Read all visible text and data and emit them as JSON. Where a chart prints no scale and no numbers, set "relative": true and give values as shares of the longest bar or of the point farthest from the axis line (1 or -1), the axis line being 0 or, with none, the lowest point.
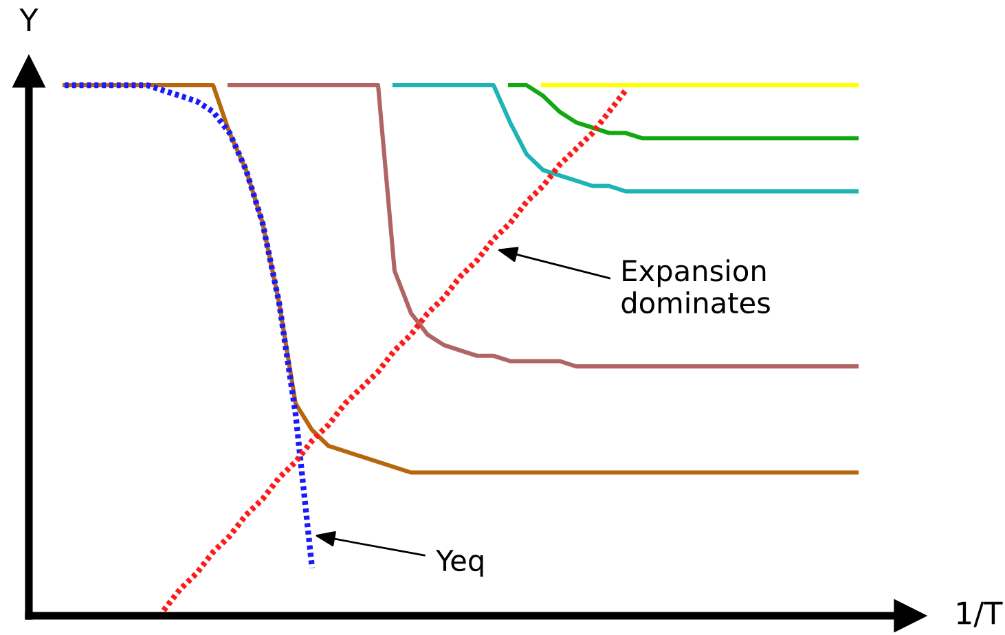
{
  "chart_data": {
    "type": "line",
    "relative": true,
    "xlabel": "1/T",
    "ylabel": "Y",
    "categories": [
      null,
      null,
      null,
      null,
      null,
      null,
      null,
      null,
      null,
      null,
      null,
      null,
      null,
      null,
      null,
      null,
      null,
      null,
      null,
      null,
      null,
      null,
      null,
      null,
      null,
      null,
      null,
      null,
      null,
      null,
      null,
      null,
      null,
      null,
      null,
      null,
      null,
      null,
      null,
      null,
      null,
      null,
      null,
      null,
      null,
      null,
      null,
      null,
      null
    ],
    "annotations": [
      "Expansion dominates",
      "Yeq"
    ],
    "series": [
      {
        "color": "#b8660b",
        "line_style": "solid",
        "values": [
          1.0,
          1.0,
          1.0,
          1.0,
          1.0,
          1.0,
          1.0,
          1.0,
          1.0,
          1.0,
          0.91,
          0.84,
          0.74,
          0.59,
          0.4,
          0.35,
          0.32,
          0.31,
          0.3,
          0.29,
          0.28,
          0.27,
          0.27,
          0.27,
          0.27,
          0.27,
          0.27,
          0.27,
          0.27,
          0.27,
          0.27,
          0.27,
          0.27,
          0.27,
          0.27,
          0.27,
          0.27,
          0.27,
          0.27,
          0.27,
          0.27,
          0.27,
          0.27,
          0.27,
          0.27,
          0.27,
          0.27,
          0.27,
          0.27
        ]
      },
      {
        "color": "#b06464",
        "line_style": "solid",
        "values": [
          null,
          null,
          null,
          null,
          null,
          null,
          null,
          null,
          null,
          null,
          1.0,
          1.0,
          1.0,
          1.0,
          1.0,
          1.0,
          1.0,
          1.0,
          1.0,
          1.0,
          0.65,
          0.57,
          0.53,
          0.51,
          0.5,
          0.49,
          0.49,
          0.48,
          0.48,
          0.48,
          0.48,
          0.47,
          0.47,
          0.47,
          0.47,
          0.47,
          0.47,
          0.47,
          0.47,
          0.47,
          0.47,
          0.47,
          0.47,
          0.47,
          0.47,
          0.47,
          0.47,
          0.47,
          0.47
        ]
      },
      {
        "color": "#1fb4b4",
        "line_style": "solid",
        "values": [
          null,
          null,
          null,
          null,
          null,
          null,
          null,
          null,
          null,
          null,
          null,
          null,
          null,
          null,
          null,
          null,
          null,
          null,
          null,
          null,
          1.0,
          1.0,
          1.0,
          1.0,
          1.0,
          1.0,
          1.0,
          0.93,
          0.87,
          0.84,
          0.83,
          0.82,
          0.81,
          0.81,
          0.8,
          0.8,
          0.8,
          0.8,
          0.8,
          0.8,
          0.8,
          0.8,
          0.8,
          0.8,
          0.8,
          0.8,
          0.8,
          0.8,
          0.8
        ]
      },
      {
        "color": "#12a812",
        "line_style": "solid",
        "values": [
          null,
          null,
          null,
          null,
          null,
          null,
          null,
          null,
          null,
          null,
          null,
          null,
          null,
          null,
          null,
          null,
          null,
          null,
          null,
          null,
          null,
          null,
          null,
          null,
          null,
          null,
          null,
          1.0,
          1.0,
          0.98,
          0.95,
          0.93,
          0.92,
          0.91,
          0.91,
          0.9,
          0.9,
          0.9,
          0.9,
          0.9,
          0.9,
          0.9,
          0.9,
          0.9,
          0.9,
          0.9,
          0.9,
          0.9,
          0.9
        ]
      },
      {
        "color": "#ffff00",
        "line_style": "solid",
        "values": [
          null,
          null,
          null,
          null,
          null,
          null,
          null,
          null,
          null,
          null,
          null,
          null,
          null,
          null,
          null,
          null,
          null,
          null,
          null,
          null,
          null,
          null,
          null,
          null,
          null,
          null,
          null,
          null,
          null,
          1.0,
          1.0,
          1.0,
          1.0,
          1.0,
          1.0,
          1.0,
          1.0,
          1.0,
          1.0,
          1.0,
          1.0,
          1.0,
          1.0,
          1.0,
          1.0,
          1.0,
          1.0,
          1.0,
          1.0
        ]
      },
      {
        "color": "#1a1aff",
        "line_style": "dotted",
        "values": [
          1.0,
          1.0,
          1.0,
          1.0,
          1.0,
          1.0,
          0.99,
          0.98,
          0.97,
          0.95,
          0.91,
          0.84,
          0.74,
          0.59,
          0.38,
          0.09,
          null,
          null,
          null,
          null,
          null,
          null,
          null,
          null,
          null,
          null,
          null,
          null,
          null,
          null,
          null,
          null,
          null,
          null,
          null,
          null,
          null,
          null,
          null,
          null,
          null,
          null,
          null,
          null,
          null,
          null,
          null,
          null,
          null
        ]
      },
      {
        "color": "#ff1a1a",
        "line_style": "dotted",
        "values": [
          null,
          null,
          null,
          null,
          null,
          null,
          0.01,
          0.05,
          0.08,
          0.12,
          0.15,
          0.19,
          0.22,
          0.26,
          0.29,
          0.33,
          0.36,
          0.4,
          0.43,
          0.46,
          0.5,
          0.53,
          0.57,
          0.6,
          0.64,
          0.67,
          0.71,
          0.74,
          0.78,
          0.81,
          0.85,
          0.88,
          0.91,
          0.95,
          0.99,
          null,
          null,
          null,
          null,
          null,
          null,
          null,
          null,
          null,
          null,
          null,
          null,
          null,
          null
        ]
      }
    ]
  }
}
